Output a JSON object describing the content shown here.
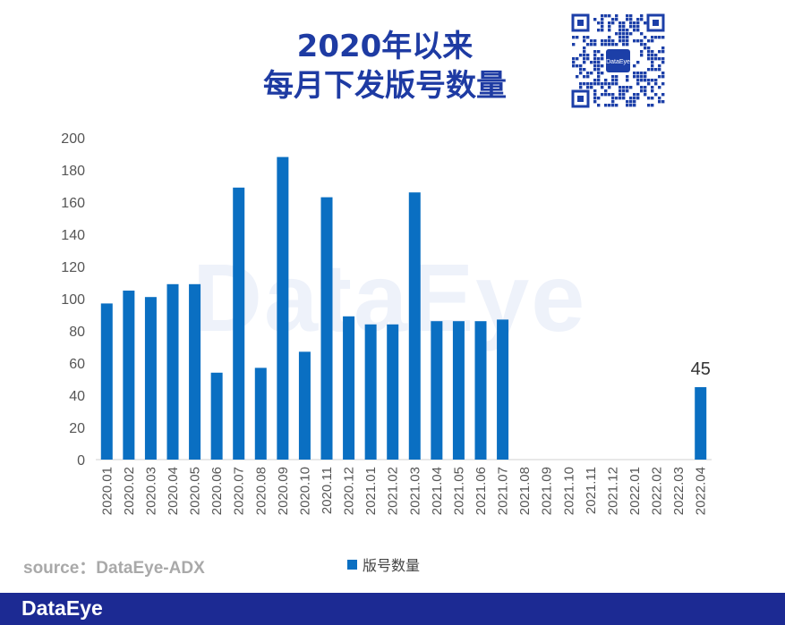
{
  "title": {
    "line1": "2020年以来",
    "line2": "每月下发版号数量"
  },
  "qr": {
    "center_text": "DataEye"
  },
  "watermark": "DataEye",
  "source": "source：DataEye-ADX",
  "footer": {
    "logo": "DataEye"
  },
  "colors": {
    "bar": "#0a6fc2",
    "title": "#1e3ba3",
    "footer": "#1c2a93",
    "grid_text": "#555555"
  },
  "chart_data": {
    "type": "bar",
    "categories": [
      "2020.01",
      "2020.02",
      "2020.03",
      "2020.04",
      "2020.05",
      "2020.06",
      "2020.07",
      "2020.08",
      "2020.09",
      "2020.10",
      "2020.11",
      "2020.12",
      "2021.01",
      "2021.02",
      "2021.03",
      "2021.04",
      "2021.05",
      "2021.06",
      "2021.07",
      "2021.08",
      "2021.09",
      "2021.10",
      "2021.11",
      "2021.12",
      "2022.01",
      "2022.02",
      "2022.03",
      "2022.04"
    ],
    "series": [
      {
        "name": "版号数量",
        "values": [
          97,
          105,
          101,
          109,
          109,
          54,
          169,
          57,
          188,
          67,
          163,
          89,
          84,
          84,
          166,
          86,
          86,
          86,
          87,
          0,
          0,
          0,
          0,
          0,
          0,
          0,
          0,
          45
        ]
      }
    ],
    "data_labels": [
      {
        "index": 27,
        "text": "45"
      }
    ],
    "ylim": [
      0,
      200
    ],
    "yticks": [
      0,
      20,
      40,
      60,
      80,
      100,
      120,
      140,
      160,
      180,
      200
    ],
    "grid": false,
    "legend": "bottom"
  }
}
